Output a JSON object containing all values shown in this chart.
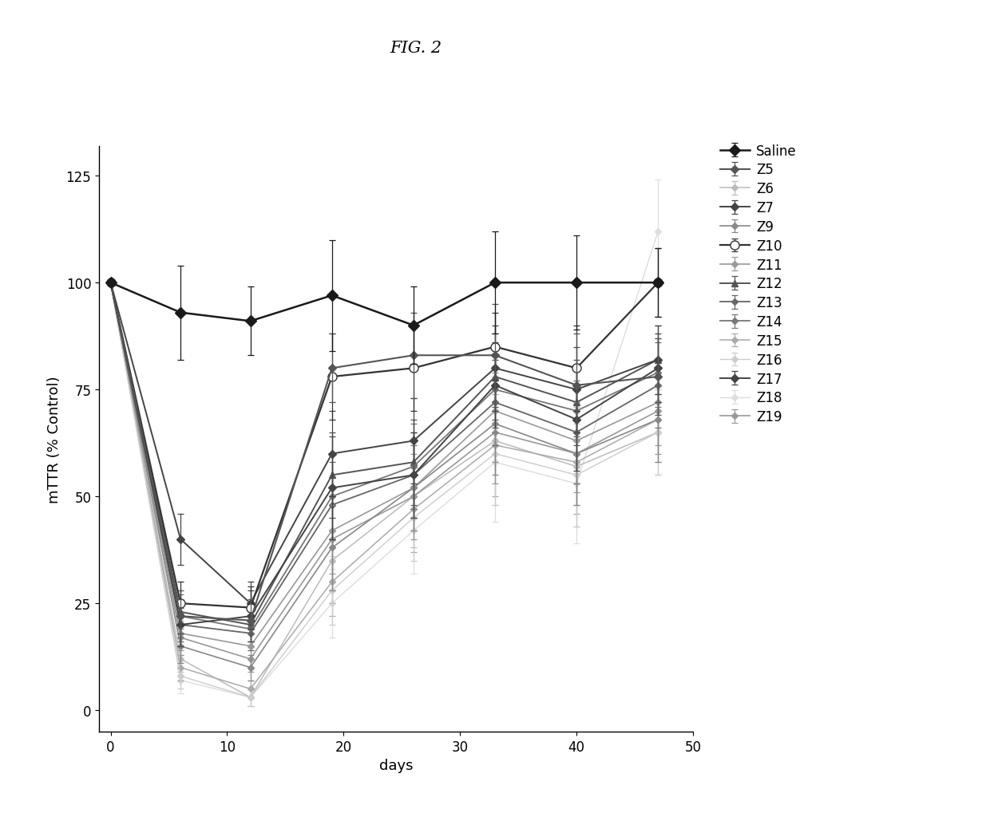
{
  "title": "FIG. 2",
  "xlabel": "days",
  "ylabel": "mTTR (% Control)",
  "xlim": [
    -1,
    50
  ],
  "ylim": [
    -5,
    132
  ],
  "xticks": [
    0,
    10,
    20,
    30,
    40,
    50
  ],
  "yticks": [
    0,
    25,
    50,
    75,
    100,
    125
  ],
  "x": [
    0,
    6,
    12,
    19,
    26,
    33,
    40,
    47
  ],
  "series": [
    {
      "name": "Saline",
      "y": [
        100,
        93,
        91,
        97,
        90,
        100,
        100,
        100
      ],
      "yerr": [
        0,
        11,
        8,
        13,
        9,
        12,
        11,
        8
      ],
      "color": "#1a1a1a",
      "marker": "D",
      "markersize": 7,
      "markerfacecolor": "#1a1a1a",
      "linewidth": 1.8,
      "zorder": 10
    },
    {
      "name": "Z5",
      "y": [
        100,
        22,
        21,
        80,
        83,
        83,
        76,
        78
      ],
      "yerr": [
        0,
        4,
        5,
        8,
        10,
        12,
        12,
        9
      ],
      "color": "#555555",
      "marker": "D",
      "markersize": 5,
      "markerfacecolor": "#555555",
      "linewidth": 1.5,
      "zorder": 9
    },
    {
      "name": "Z6",
      "y": [
        100,
        12,
        3,
        35,
        50,
        63,
        57,
        65
      ],
      "yerr": [
        0,
        3,
        2,
        10,
        12,
        15,
        14,
        10
      ],
      "color": "#bbbbbb",
      "marker": "D",
      "markersize": 4,
      "markerfacecolor": "#bbbbbb",
      "linewidth": 1.1,
      "zorder": 3
    },
    {
      "name": "Z7",
      "y": [
        100,
        20,
        22,
        52,
        55,
        76,
        68,
        80
      ],
      "yerr": [
        0,
        5,
        6,
        12,
        10,
        10,
        12,
        8
      ],
      "color": "#444444",
      "marker": "D",
      "markersize": 5,
      "markerfacecolor": "#444444",
      "linewidth": 1.4,
      "zorder": 7
    },
    {
      "name": "Z9",
      "y": [
        100,
        15,
        10,
        38,
        52,
        67,
        60,
        68
      ],
      "yerr": [
        0,
        4,
        3,
        10,
        10,
        12,
        12,
        10
      ],
      "color": "#888888",
      "marker": "D",
      "markersize": 4,
      "markerfacecolor": "#888888",
      "linewidth": 1.2,
      "zorder": 5
    },
    {
      "name": "Z10",
      "y": [
        100,
        25,
        24,
        78,
        80,
        85,
        80,
        100
      ],
      "yerr": [
        0,
        5,
        5,
        10,
        10,
        8,
        10,
        8
      ],
      "color": "#333333",
      "marker": "o",
      "markersize": 8,
      "markerfacecolor": "white",
      "linewidth": 1.6,
      "zorder": 8
    },
    {
      "name": "Z11",
      "y": [
        100,
        18,
        15,
        42,
        52,
        70,
        63,
        72
      ],
      "yerr": [
        0,
        4,
        3,
        10,
        10,
        12,
        12,
        10
      ],
      "color": "#999999",
      "marker": "D",
      "markersize": 4,
      "markerfacecolor": "#999999",
      "linewidth": 1.2,
      "zorder": 4
    },
    {
      "name": "Z12",
      "y": [
        100,
        23,
        20,
        55,
        58,
        78,
        72,
        82
      ],
      "yerr": [
        0,
        5,
        4,
        10,
        10,
        10,
        10,
        8
      ],
      "color": "#555555",
      "marker": "^",
      "markersize": 6,
      "markerfacecolor": "#555555",
      "linewidth": 1.4,
      "zorder": 4
    },
    {
      "name": "Z13",
      "y": [
        100,
        20,
        18,
        48,
        55,
        72,
        65,
        76
      ],
      "yerr": [
        0,
        4,
        4,
        10,
        10,
        10,
        12,
        10
      ],
      "color": "#666666",
      "marker": "D",
      "markersize": 4,
      "markerfacecolor": "#666666",
      "linewidth": 1.3,
      "zorder": 4
    },
    {
      "name": "Z14",
      "y": [
        100,
        22,
        19,
        50,
        57,
        75,
        70,
        79
      ],
      "yerr": [
        0,
        5,
        4,
        10,
        10,
        10,
        10,
        8
      ],
      "color": "#777777",
      "marker": "D",
      "markersize": 4,
      "markerfacecolor": "#777777",
      "linewidth": 1.3,
      "zorder": 4
    },
    {
      "name": "Z15",
      "y": [
        100,
        10,
        5,
        30,
        47,
        62,
        58,
        68
      ],
      "yerr": [
        0,
        3,
        2,
        8,
        10,
        12,
        12,
        10
      ],
      "color": "#aaaaaa",
      "marker": "D",
      "markersize": 4,
      "markerfacecolor": "#aaaaaa",
      "linewidth": 1.1,
      "zorder": 3
    },
    {
      "name": "Z16",
      "y": [
        100,
        8,
        3,
        28,
        45,
        60,
        55,
        65
      ],
      "yerr": [
        0,
        3,
        2,
        8,
        10,
        12,
        12,
        10
      ],
      "color": "#cccccc",
      "marker": "D",
      "markersize": 4,
      "markerfacecolor": "#cccccc",
      "linewidth": 1.0,
      "zorder": 3
    },
    {
      "name": "Z17",
      "y": [
        100,
        40,
        25,
        60,
        63,
        80,
        75,
        82
      ],
      "yerr": [
        0,
        6,
        5,
        10,
        10,
        10,
        10,
        8
      ],
      "color": "#444444",
      "marker": "D",
      "markersize": 5,
      "markerfacecolor": "#444444",
      "linewidth": 1.4,
      "zorder": 6
    },
    {
      "name": "Z18",
      "y": [
        100,
        7,
        3,
        25,
        42,
        58,
        53,
        112
      ],
      "yerr": [
        0,
        3,
        2,
        8,
        10,
        14,
        14,
        12
      ],
      "color": "#dddddd",
      "marker": "D",
      "markersize": 4,
      "markerfacecolor": "#dddddd",
      "linewidth": 1.0,
      "zorder": 2
    },
    {
      "name": "Z19",
      "y": [
        100,
        17,
        12,
        40,
        50,
        65,
        60,
        70
      ],
      "yerr": [
        0,
        4,
        3,
        10,
        10,
        12,
        12,
        10
      ],
      "color": "#999999",
      "marker": "D",
      "markersize": 4,
      "markerfacecolor": "#999999",
      "linewidth": 1.2,
      "zorder": 3
    }
  ],
  "background_color": "#ffffff",
  "title_fontsize": 15,
  "axis_fontsize": 13,
  "tick_fontsize": 12,
  "legend_fontsize": 12
}
